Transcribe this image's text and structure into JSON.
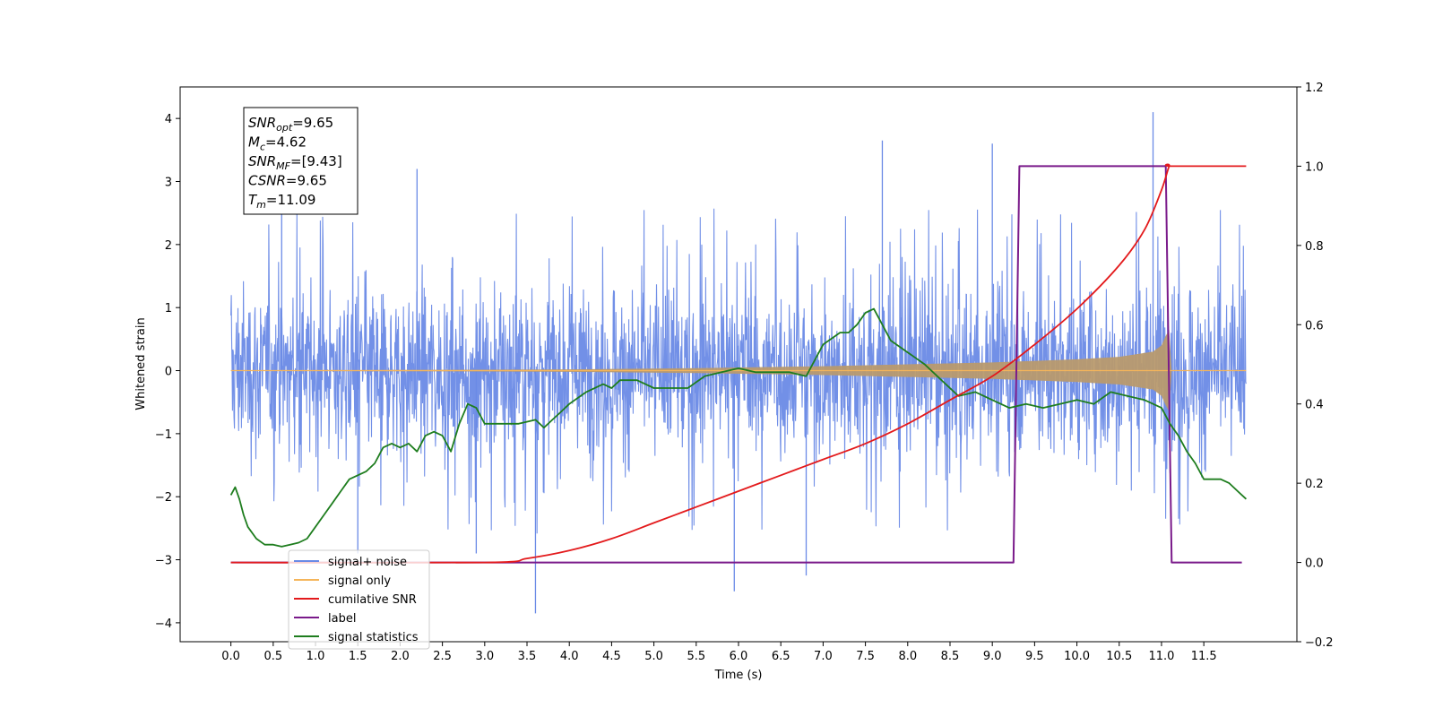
{
  "chart_data": {
    "type": "line",
    "xlabel": "Time (s)",
    "ylabel": "Whitened strain",
    "xlim": [
      -0.6,
      12.6
    ],
    "ylim": [
      -4.3,
      4.5
    ],
    "y2lim": [
      -0.2,
      1.2
    ],
    "x_ticks": [
      0.0,
      0.5,
      1.0,
      1.5,
      2.0,
      2.5,
      3.0,
      3.5,
      4.0,
      4.5,
      5.0,
      5.5,
      6.0,
      6.5,
      7.0,
      7.5,
      8.0,
      8.5,
      9.0,
      9.5,
      10.0,
      10.5,
      11.0,
      11.5
    ],
    "x_tick_labels": [
      "0.0",
      "0.5",
      "1.0",
      "1.5",
      "2.0",
      "2.5",
      "3.0",
      "3.5",
      "4.0",
      "4.5",
      "5.0",
      "5.5",
      "6.0",
      "6.5",
      "7.0",
      "7.5",
      "8.0",
      "8.5",
      "9.0",
      "9.5",
      "10.0",
      "10.5",
      "11.0",
      "11.5"
    ],
    "y_ticks": [
      -4,
      -3,
      -2,
      -1,
      0,
      1,
      2,
      3,
      4
    ],
    "y_tick_labels": [
      "−4",
      "−3",
      "−2",
      "−1",
      "0",
      "1",
      "2",
      "3",
      "4"
    ],
    "y2_ticks": [
      -0.2,
      0.0,
      0.2,
      0.4,
      0.6,
      0.8,
      1.0,
      1.2
    ],
    "y2_tick_labels": [
      "−0.2",
      "0.0",
      "0.2",
      "0.4",
      "0.6",
      "0.8",
      "1.0",
      "1.2"
    ],
    "legend_position": "lower-left",
    "annotation": [
      {
        "main": "SNR",
        "sub": "opt",
        "value": "=9.65"
      },
      {
        "main": "M",
        "sub": "c",
        "value": "=4.62"
      },
      {
        "main": "SNR",
        "sub": "MF",
        "value": "=[9.43]"
      },
      {
        "main": "CSNR",
        "sub": "",
        "value": "=9.65"
      },
      {
        "main": "T",
        "sub": "m",
        "value": "=11.09"
      }
    ],
    "series": [
      {
        "name": "signal+ noise",
        "color": "#6a8ae6",
        "axis": "left",
        "x_range": [
          0.0,
          12.0
        ],
        "typical_band": [
          -1.5,
          1.5
        ],
        "peaks": [
          [
            0.6,
            3.1
          ],
          [
            2.2,
            3.2
          ],
          [
            7.7,
            3.65
          ],
          [
            9.0,
            3.6
          ],
          [
            10.9,
            4.1
          ],
          [
            3.6,
            -3.85
          ],
          [
            5.95,
            -3.5
          ],
          [
            6.8,
            -3.25
          ],
          [
            1.5,
            -2.9
          ],
          [
            2.9,
            -2.9
          ]
        ]
      },
      {
        "name": "signal only",
        "color": "#f5b55a",
        "axis": "left",
        "envelope": [
          [
            0.0,
            0.005
          ],
          [
            2.0,
            0.01
          ],
          [
            4.0,
            0.02
          ],
          [
            5.5,
            0.04
          ],
          [
            7.0,
            0.07
          ],
          [
            8.0,
            0.1
          ],
          [
            9.0,
            0.13
          ],
          [
            10.0,
            0.18
          ],
          [
            10.5,
            0.22
          ],
          [
            10.9,
            0.3
          ],
          [
            11.0,
            0.4
          ],
          [
            11.05,
            0.55
          ],
          [
            11.09,
            0.65
          ],
          [
            11.12,
            0.0
          ],
          [
            12.0,
            0.0
          ]
        ]
      },
      {
        "name": "cumilative SNR",
        "color": "#e31a1c",
        "axis": "right",
        "x": [
          0.0,
          3.0,
          3.5,
          4.0,
          4.5,
          5.0,
          5.5,
          6.0,
          6.5,
          7.0,
          7.5,
          8.0,
          8.5,
          9.0,
          9.5,
          10.0,
          10.5,
          10.8,
          11.0,
          11.09,
          11.12,
          12.0
        ],
        "values": [
          0.0,
          0.0,
          0.01,
          0.03,
          0.06,
          0.1,
          0.14,
          0.18,
          0.22,
          0.26,
          0.3,
          0.35,
          0.41,
          0.47,
          0.55,
          0.64,
          0.75,
          0.84,
          0.94,
          1.0,
          1.0,
          1.0
        ]
      },
      {
        "name": "label",
        "color": "#7a1a8a",
        "axis": "right",
        "x": [
          0.0,
          9.25,
          9.32,
          11.05,
          11.12,
          11.95
        ],
        "values": [
          0.0,
          0.0,
          1.0,
          1.0,
          0.0,
          0.0
        ]
      },
      {
        "name": "signal statistics",
        "color": "#1e7d1e",
        "axis": "right",
        "x": [
          0.0,
          0.05,
          0.1,
          0.15,
          0.2,
          0.3,
          0.4,
          0.5,
          0.6,
          0.7,
          0.8,
          0.9,
          1.0,
          1.1,
          1.2,
          1.3,
          1.4,
          1.5,
          1.6,
          1.7,
          1.8,
          1.9,
          2.0,
          2.1,
          2.2,
          2.3,
          2.4,
          2.5,
          2.6,
          2.7,
          2.8,
          2.9,
          3.0,
          3.2,
          3.4,
          3.6,
          3.7,
          3.8,
          3.9,
          4.0,
          4.2,
          4.4,
          4.5,
          4.6,
          4.8,
          5.0,
          5.2,
          5.4,
          5.6,
          5.8,
          6.0,
          6.2,
          6.4,
          6.6,
          6.8,
          7.0,
          7.2,
          7.3,
          7.4,
          7.5,
          7.6,
          7.7,
          7.8,
          8.0,
          8.2,
          8.4,
          8.6,
          8.8,
          9.0,
          9.2,
          9.4,
          9.6,
          9.8,
          10.0,
          10.2,
          10.4,
          10.6,
          10.8,
          11.0,
          11.1,
          11.2,
          11.3,
          11.4,
          11.5,
          11.6,
          11.7,
          11.8,
          11.9,
          12.0
        ],
        "values": [
          0.17,
          0.19,
          0.16,
          0.12,
          0.09,
          0.06,
          0.045,
          0.045,
          0.04,
          0.045,
          0.05,
          0.06,
          0.09,
          0.12,
          0.15,
          0.18,
          0.21,
          0.22,
          0.23,
          0.25,
          0.29,
          0.3,
          0.29,
          0.3,
          0.28,
          0.32,
          0.33,
          0.32,
          0.28,
          0.35,
          0.4,
          0.39,
          0.35,
          0.35,
          0.35,
          0.36,
          0.34,
          0.36,
          0.38,
          0.4,
          0.43,
          0.45,
          0.44,
          0.46,
          0.46,
          0.44,
          0.44,
          0.44,
          0.47,
          0.48,
          0.49,
          0.48,
          0.48,
          0.48,
          0.47,
          0.55,
          0.58,
          0.58,
          0.6,
          0.63,
          0.64,
          0.6,
          0.56,
          0.53,
          0.5,
          0.46,
          0.42,
          0.43,
          0.41,
          0.39,
          0.4,
          0.39,
          0.4,
          0.41,
          0.4,
          0.43,
          0.42,
          0.41,
          0.39,
          0.35,
          0.32,
          0.28,
          0.25,
          0.21,
          0.21,
          0.21,
          0.2,
          0.18,
          0.16
        ]
      }
    ]
  }
}
